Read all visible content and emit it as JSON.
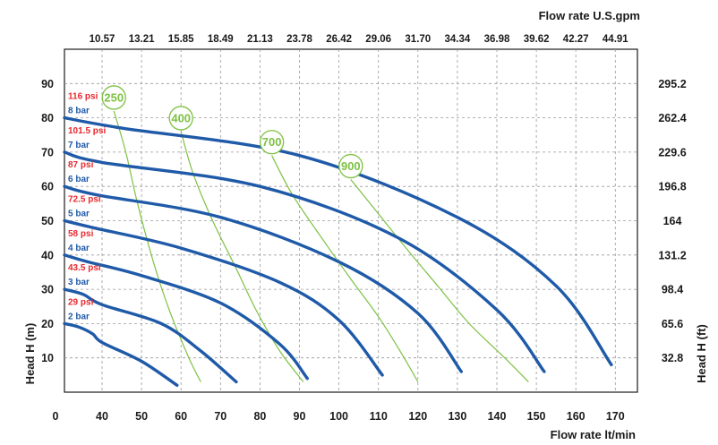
{
  "chart_data": {
    "type": "line",
    "x_bottom": {
      "label": "Flow rate  lt/min",
      "ticks": [
        "0",
        "40",
        "50",
        "60",
        "70",
        "80",
        "90",
        "100",
        "110",
        "120",
        "130",
        "140",
        "150",
        "160",
        "170"
      ],
      "tick_values": [
        0,
        40,
        50,
        60,
        70,
        80,
        90,
        100,
        110,
        120,
        130,
        140,
        150,
        160,
        170
      ]
    },
    "x_top": {
      "label": "Flow rate U.S.gpm",
      "ticks": [
        "10.57",
        "13.21",
        "15.85",
        "18.49",
        "21.13",
        "23.78",
        "26.42",
        "29.06",
        "31.70",
        "34.34",
        "36.98",
        "39.62",
        "42.27",
        "44.91"
      ]
    },
    "y_left": {
      "label": "Head H (m)",
      "ticks": [
        "10",
        "20",
        "30",
        "40",
        "50",
        "60",
        "70",
        "80",
        "90"
      ],
      "tick_values": [
        10,
        20,
        30,
        40,
        50,
        60,
        70,
        80,
        90
      ],
      "ylim": [
        0,
        100
      ]
    },
    "y_right": {
      "label": "Head H (ft)",
      "ticks": [
        "32.8",
        "65.6",
        "98.4",
        "131.2",
        "164",
        "196.8",
        "229.6",
        "262.4",
        "295.2"
      ]
    },
    "grid": true,
    "series": [
      {
        "psi": "29 psi",
        "bar": "2 bar",
        "head_at_zero": 20,
        "x": [
          0,
          15,
          30,
          40,
          50,
          59
        ],
        "y": [
          20,
          19,
          17,
          14.5,
          9,
          2
        ]
      },
      {
        "psi": "43.5 psi",
        "bar": "3 bar",
        "head_at_zero": 30,
        "x": [
          0,
          20,
          40,
          55,
          65,
          74
        ],
        "y": [
          30,
          28.5,
          25.5,
          20,
          12,
          3
        ]
      },
      {
        "psi": "58 psi",
        "bar": "4 bar",
        "head_at_zero": 40,
        "x": [
          0,
          25,
          50,
          70,
          85,
          92
        ],
        "y": [
          40,
          38,
          34,
          26,
          14,
          4
        ]
      },
      {
        "psi": "72.5 psi",
        "bar": "5 bar",
        "head_at_zero": 50,
        "x": [
          0,
          30,
          60,
          85,
          100,
          111
        ],
        "y": [
          50,
          48,
          42,
          32,
          21,
          5
        ]
      },
      {
        "psi": "87 psi",
        "bar": "6 bar",
        "head_at_zero": 60,
        "x": [
          0,
          35,
          70,
          100,
          120,
          131
        ],
        "y": [
          60,
          57.5,
          51,
          38,
          23,
          6
        ]
      },
      {
        "psi": "101.5 psi",
        "bar": "7 bar",
        "head_at_zero": 70,
        "x": [
          0,
          40,
          80,
          115,
          140,
          152
        ],
        "y": [
          70,
          67,
          60,
          45,
          24,
          6
        ]
      },
      {
        "psi": "116 psi",
        "bar": "8 bar",
        "head_at_zero": 80,
        "x": [
          0,
          45,
          90,
          130,
          155,
          169
        ],
        "y": [
          80,
          77,
          69,
          51,
          31,
          8
        ]
      }
    ],
    "speed_curves": [
      {
        "label": "250",
        "x": [
          43,
          46,
          49,
          53,
          57,
          62,
          65
        ],
        "y": [
          82,
          70,
          55,
          38,
          24,
          10,
          3
        ]
      },
      {
        "label": "400",
        "x": [
          60,
          63,
          68,
          74,
          79,
          85,
          91
        ],
        "y": [
          76,
          64,
          50,
          36,
          24,
          12,
          3
        ]
      },
      {
        "label": "700",
        "x": [
          83,
          88,
          95,
          103,
          110,
          116,
          120
        ],
        "y": [
          69,
          58,
          46,
          33,
          22,
          11,
          3
        ]
      },
      {
        "label": "900",
        "x": [
          103,
          110,
          117,
          125,
          133,
          142,
          148
        ],
        "y": [
          62,
          52,
          42,
          31,
          20,
          10,
          3
        ]
      }
    ],
    "colors": {
      "series": "#1f5aa8",
      "speed": "#7dc142",
      "psi": "#e8282e",
      "bar": "#1f5aa8",
      "grid": "#9a9a9a"
    }
  }
}
